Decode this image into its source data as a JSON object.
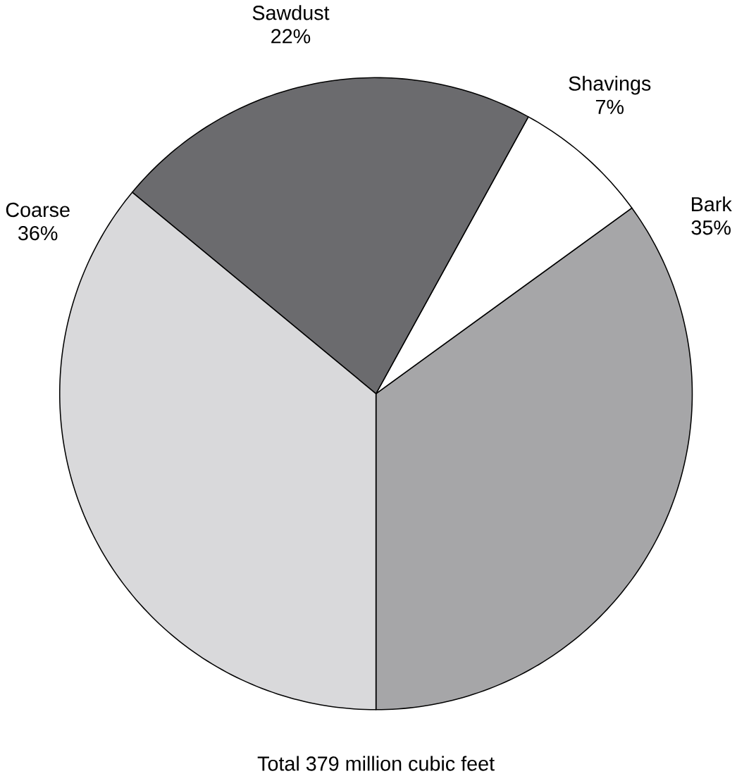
{
  "chart_data": {
    "type": "pie",
    "categories": [
      "Bark",
      "Shavings",
      "Sawdust",
      "Coarse"
    ],
    "values": [
      35,
      7,
      22,
      36
    ],
    "value_labels": [
      "35%",
      "7%",
      "22%",
      "36%"
    ],
    "colors": [
      "#a6a6a8",
      "#ffffff",
      "#6b6b6e",
      "#d9d9db"
    ],
    "annotations": [
      "Total 379 million cubic feet"
    ]
  }
}
